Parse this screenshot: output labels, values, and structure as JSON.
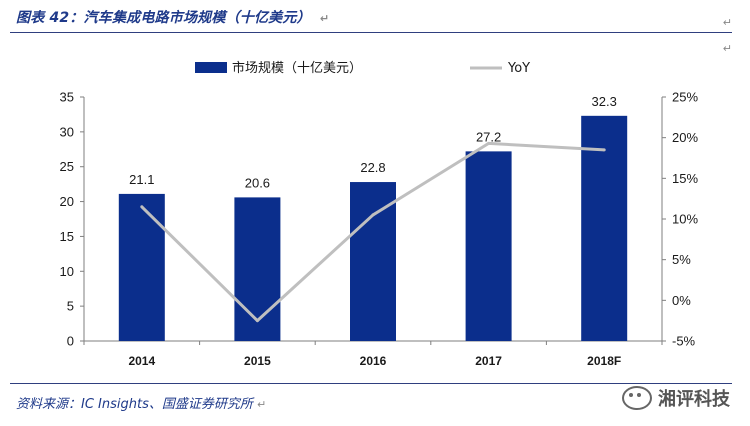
{
  "header": {
    "title": "图表 42：汽车集成电路市场规模（十亿美元）",
    "return_mark": "↵"
  },
  "footer": {
    "source": "资料来源：IC Insights、国盛证券研究所",
    "watermark": "湘评科技"
  },
  "colors": {
    "bar": "#0b2e8c",
    "line": "#bfbfbf",
    "rule": "#2f3f7f",
    "title_text": "#1f3a8a"
  },
  "chart_data": {
    "type": "bar",
    "categories": [
      "2014",
      "2015",
      "2016",
      "2017",
      "2018F"
    ],
    "series": [
      {
        "name": "市场规模（十亿美元）",
        "type": "bar",
        "axis": "left",
        "values": [
          21.1,
          20.6,
          22.8,
          27.2,
          32.3
        ]
      },
      {
        "name": "YoY",
        "type": "line",
        "axis": "right",
        "values": [
          11.5,
          -2.5,
          10.5,
          19.3,
          18.5
        ]
      }
    ],
    "data_labels": [
      "21.1",
      "20.6",
      "22.8",
      "27.2",
      "32.3"
    ],
    "y_left": {
      "min": 0,
      "max": 35,
      "ticks": [
        0,
        5,
        10,
        15,
        20,
        25,
        30,
        35
      ]
    },
    "y_right": {
      "min": -5,
      "max": 25,
      "ticks": [
        "-5%",
        "0%",
        "5%",
        "10%",
        "15%",
        "20%",
        "25%"
      ]
    },
    "legend": {
      "position": "top",
      "entries": [
        "市场规模（十亿美元）",
        "YoY"
      ]
    },
    "grid": false,
    "title": "",
    "xlabel": "",
    "ylabel": ""
  }
}
